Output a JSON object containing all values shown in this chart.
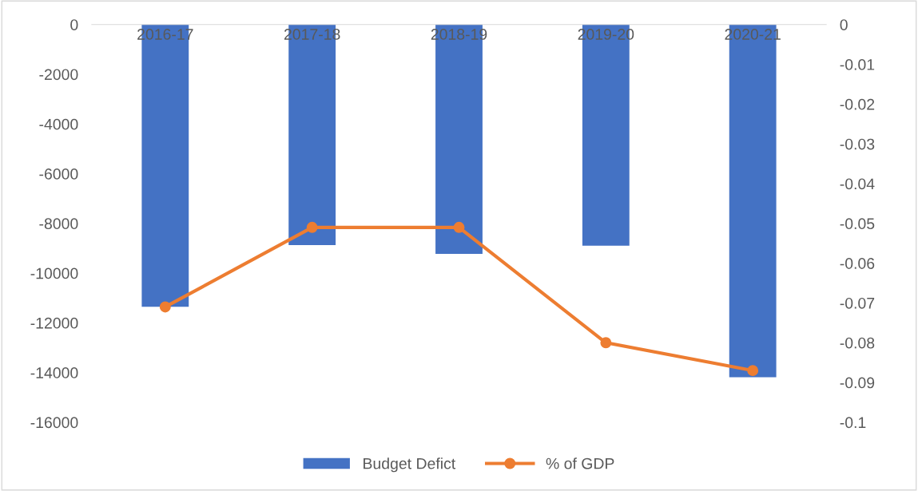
{
  "chart_data": {
    "type": "bar",
    "categories": [
      "2016-17",
      "2017-18",
      "2018-19",
      "2019-20",
      "2020-21"
    ],
    "series": [
      {
        "name": "Budget Defict",
        "color": "#4472c4",
        "values": [
          -11350,
          -8870,
          -9230,
          -8900,
          -14190
        ]
      },
      {
        "name": "% of GDP",
        "type": "line",
        "axis": "y2",
        "color": "#ed7d31",
        "marker": "circle",
        "values": [
          -0.071,
          -0.051,
          -0.051,
          -0.08,
          -0.087
        ]
      }
    ],
    "ylim": [
      -16000,
      0
    ],
    "yticks": [
      -16000,
      -14000,
      -12000,
      -10000,
      -8000,
      -6000,
      -4000,
      -2000,
      0
    ],
    "y2lim": [
      -0.1,
      0
    ],
    "y2ticks": [
      -0.1,
      -0.09,
      -0.08,
      -0.07,
      -0.06,
      -0.05,
      -0.04,
      -0.03,
      -0.02,
      -0.01,
      0
    ],
    "grid": false,
    "legend": "bottom"
  }
}
